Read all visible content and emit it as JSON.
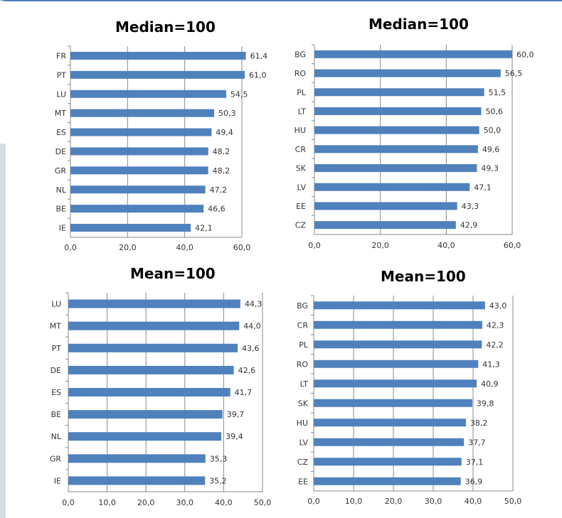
{
  "colors": {
    "bar": "#4f81bd",
    "frame": "#4f81bd"
  },
  "chart_data": [
    {
      "type": "bar",
      "orientation": "horizontal",
      "title": "Median=100",
      "categories": [
        "FR",
        "PT",
        "LU",
        "MT",
        "ES",
        "DE",
        "GR",
        "NL",
        "BE",
        "IE"
      ],
      "values": [
        61.4,
        61.0,
        54.5,
        50.3,
        49.4,
        48.2,
        48.2,
        47.2,
        46.6,
        42.1
      ],
      "value_labels": [
        "61,4",
        "61,0",
        "54,5",
        "50,3",
        "49,4",
        "48,2",
        "48,2",
        "47,2",
        "46,6",
        "42,1"
      ],
      "xlim": [
        0,
        60
      ],
      "xticks": [
        0,
        20,
        40,
        60
      ],
      "xtick_labels": [
        "0,0",
        "20,0",
        "40,0",
        "60,0"
      ],
      "grid": true
    },
    {
      "type": "bar",
      "orientation": "horizontal",
      "title": "Median=100",
      "categories": [
        "BG",
        "RO",
        "PL",
        "LT",
        "HU",
        "CR",
        "SK",
        "LV",
        "EE",
        "CZ"
      ],
      "values": [
        60.0,
        56.5,
        51.5,
        50.6,
        50.0,
        49.6,
        49.3,
        47.1,
        43.3,
        42.9
      ],
      "value_labels": [
        "60,0",
        "56,5",
        "51,5",
        "50,6",
        "50,0",
        "49,6",
        "49,3",
        "47,1",
        "43,3",
        "42,9"
      ],
      "xlim": [
        0,
        60
      ],
      "xticks": [
        0,
        20,
        40,
        60
      ],
      "xtick_labels": [
        "0,0",
        "20,0",
        "40,0",
        "60,0"
      ],
      "grid": true
    },
    {
      "type": "bar",
      "orientation": "horizontal",
      "title": "Mean=100",
      "categories": [
        "LU",
        "MT",
        "PT",
        "DE",
        "ES",
        "BE",
        "NL",
        "GR",
        "IE"
      ],
      "values": [
        44.3,
        44.0,
        43.6,
        42.6,
        41.7,
        39.7,
        39.4,
        35.3,
        35.2
      ],
      "value_labels": [
        "44,3",
        "44,0",
        "43,6",
        "42,6",
        "41,7",
        "39,7",
        "39,4",
        "35,3",
        "35,2"
      ],
      "xlim": [
        0,
        50
      ],
      "xticks": [
        0,
        10,
        20,
        30,
        40,
        50
      ],
      "xtick_labels": [
        "0,0",
        "10,0",
        "20,0",
        "30,0",
        "40,0",
        "50,0"
      ],
      "grid": true
    },
    {
      "type": "bar",
      "orientation": "horizontal",
      "title": "Mean=100",
      "categories": [
        "BG",
        "CR",
        "PL",
        "RO",
        "LT",
        "SK",
        "HU",
        "LV",
        "CZ",
        "EE"
      ],
      "values": [
        43.0,
        42.3,
        42.2,
        41.3,
        40.9,
        39.8,
        38.2,
        37.7,
        37.1,
        36.9
      ],
      "value_labels": [
        "43,0",
        "42,3",
        "42,2",
        "41,3",
        "40,9",
        "39,8",
        "38,2",
        "37,7",
        "37,1",
        "36,9"
      ],
      "xlim": [
        0,
        50
      ],
      "xticks": [
        0,
        10,
        20,
        30,
        40,
        50
      ],
      "xtick_labels": [
        "0,0",
        "10,0",
        "20,0",
        "30,0",
        "40,0",
        "50,0"
      ],
      "grid": true
    }
  ]
}
